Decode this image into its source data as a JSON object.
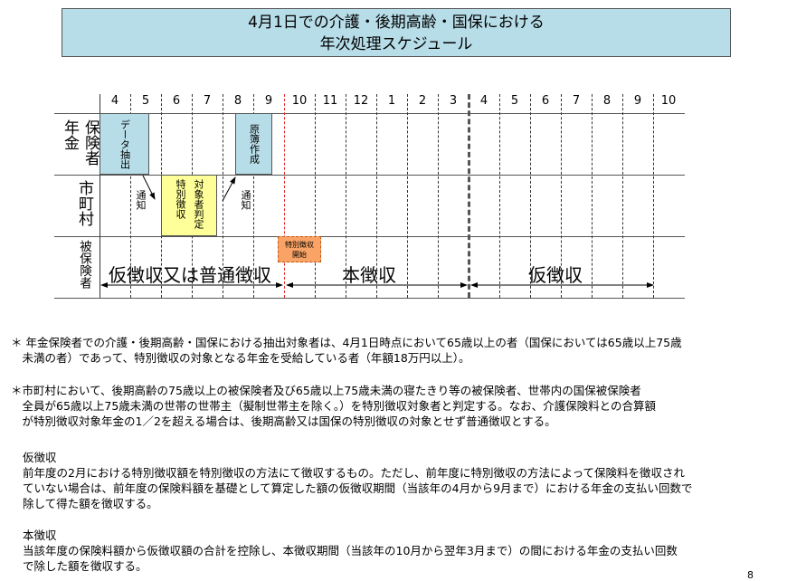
{
  "title": {
    "line1": "4月1日での介護・後期高齢・国保における",
    "line2": "年次処理スケジュール"
  },
  "months": [
    "4",
    "5",
    "6",
    "7",
    "8",
    "9",
    "10",
    "11",
    "12",
    "1",
    "2",
    "3",
    "4",
    "5",
    "6",
    "7",
    "8",
    "9",
    "10"
  ],
  "rows": {
    "pension_left": "年金",
    "pension_right": "保険者",
    "municipality": "市町村",
    "insured": "被保険者"
  },
  "boxes": {
    "data_extract": "データ抽出",
    "ledger": "原簿作成",
    "judge_col1": "特別徴収",
    "judge_col2": "対象者判定",
    "special_start": "特別徴収開始"
  },
  "notify1": "通知",
  "notify2": "通知",
  "periods": {
    "p1": "仮徴収又は普通徴収",
    "p2": "本徴収",
    "p3": "仮徴収"
  },
  "colors": {
    "blue": "#b7dde8",
    "yellow": "#ffff99",
    "orange": "#f9a366",
    "red_line": "#e03030"
  },
  "notes": {
    "n1": "＊ 年金保険者での介護・後期高齢・国保における抽出対象者は、4月1日時点において65歳以上の者（国保においては65歳以上75歳\n　未満の者）であって、特別徴収の対象となる年金を受給している者（年額18万円以上）。",
    "n2": "＊市町村において、後期高齢の75歳以上の被保険者及び65歳以上75歳未満の寝たきり等の被保険者、世帯内の国保被保険者\n　全員が65歳以上75歳未満の世帯の世帯主（擬制世帯主を除く。）を特別徴収対象者と判定する。なお、介護保険料との合算額\n　が特別徴収対象年金の1／2を超える場合は、後期高齢又は国保の特別徴収の対象とせず普通徴収とする。",
    "h1": "仮徴収",
    "b1": "前年度の2月における特別徴収額を特別徴収の方法にて徴収するもの。ただし、前年度に特別徴収の方法によって保険料を徴収され\nていない場合は、前年度の保険料額を基礎として算定した額の仮徴収期間（当該年の4月から9月まで）における年金の支払い回数で\n除して得た額を徴収する。",
    "h2": "本徴収",
    "b2": "当該年度の保険料額から仮徴収額の合計を控除し、本徴収期間（当該年の10月から翌年3月まで）の間における年金の支払い回数\nで除した額を徴収する。"
  },
  "page_number": "8"
}
